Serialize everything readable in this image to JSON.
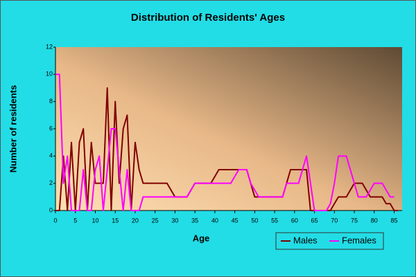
{
  "chart_data": {
    "type": "line",
    "title": "Distribution of Residents' Ages",
    "x_label": "Age",
    "y_label": "Number of residents",
    "x": [
      0,
      1,
      2,
      3,
      4,
      5,
      6,
      7,
      8,
      9,
      10,
      11,
      12,
      13,
      14,
      15,
      16,
      17,
      18,
      19,
      20,
      21,
      22,
      23,
      24,
      25,
      26,
      27,
      28,
      29,
      30,
      31,
      32,
      33,
      34,
      35,
      36,
      37,
      38,
      39,
      40,
      41,
      42,
      43,
      44,
      45,
      46,
      47,
      48,
      49,
      50,
      51,
      52,
      53,
      54,
      55,
      56,
      57,
      58,
      59,
      60,
      61,
      62,
      63,
      64,
      65,
      66,
      67,
      68,
      69,
      70,
      71,
      72,
      73,
      74,
      75,
      76,
      77,
      78,
      79,
      80,
      81,
      82,
      83,
      84,
      85,
      86
    ],
    "series": [
      {
        "name": "Males",
        "color": "#800000",
        "values": [
          0,
          0,
          4,
          0,
          5,
          0,
          5,
          6,
          0,
          5,
          2,
          2,
          2,
          9,
          0,
          8,
          2,
          6,
          7,
          0,
          5,
          3,
          2,
          2,
          2,
          2,
          2,
          2,
          2,
          1.5,
          1,
          1,
          1,
          1,
          1.5,
          2,
          2,
          2,
          2,
          2,
          2.5,
          3,
          3,
          3,
          3,
          3,
          3,
          3,
          3,
          2,
          1,
          1,
          1,
          1,
          1,
          1,
          1,
          1,
          2,
          3,
          3,
          3,
          3,
          3,
          0,
          0,
          0,
          0,
          0,
          0,
          0.5,
          1,
          1,
          1,
          1.5,
          2,
          2,
          2,
          1.5,
          1,
          1,
          1,
          1,
          0.5,
          0.5,
          0,
          0
        ]
      },
      {
        "name": "Females",
        "color": "#ff00ff",
        "values": [
          10,
          10,
          2,
          4,
          0,
          0,
          0,
          3,
          0,
          0,
          3,
          4,
          0,
          3,
          6,
          6,
          3,
          0,
          3,
          0,
          0,
          0,
          1,
          1,
          1,
          1,
          1,
          1,
          1,
          1,
          1,
          1,
          1,
          1,
          1.5,
          2,
          2,
          2,
          2,
          2,
          2,
          2,
          2,
          2,
          2,
          2.5,
          3,
          3,
          3,
          2,
          1.5,
          1,
          1,
          1,
          1,
          1,
          1,
          1,
          2,
          2,
          2,
          2,
          3,
          4,
          2,
          0,
          0,
          0,
          0,
          0.5,
          2,
          4,
          4,
          4,
          3,
          2,
          1,
          1,
          1,
          1.5,
          2,
          2,
          2,
          1.5,
          1,
          1,
          null
        ]
      }
    ],
    "xlim": [
      0,
      87
    ],
    "xticks": [
      0,
      5,
      10,
      15,
      20,
      25,
      30,
      35,
      40,
      45,
      50,
      55,
      60,
      65,
      70,
      75,
      80,
      85
    ],
    "ylim": [
      0,
      12
    ],
    "yticks": [
      0,
      2,
      4,
      6,
      8,
      10,
      12
    ],
    "legend": "bottom-right"
  }
}
